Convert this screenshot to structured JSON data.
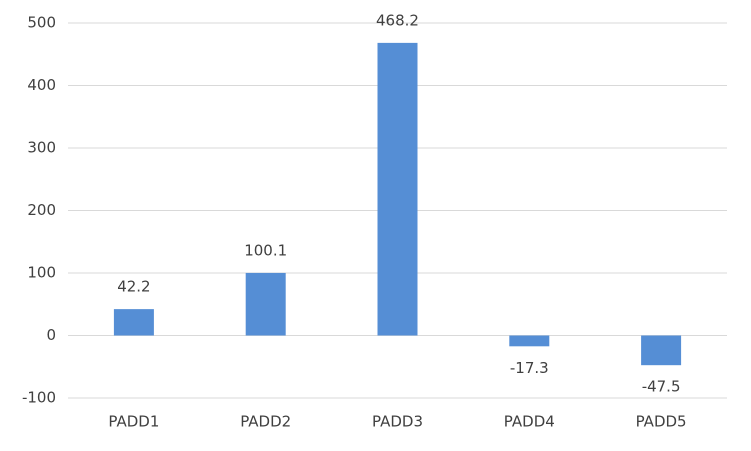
{
  "chart_data": {
    "type": "bar",
    "categories": [
      "PADD1",
      "PADD2",
      "PADD3",
      "PADD4",
      "PADD5"
    ],
    "values": [
      42.2,
      100.1,
      468.2,
      -17.3,
      -47.5
    ],
    "color": "#558ed5",
    "ylim": [
      -100,
      500
    ],
    "yticks": [
      -100,
      0,
      100,
      200,
      300,
      400,
      500
    ],
    "grid": true
  }
}
